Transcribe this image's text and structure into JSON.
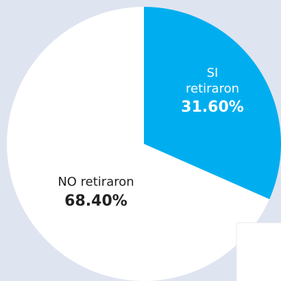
{
  "chart_data": {
    "type": "pie",
    "categories": [
      "SI retiraron",
      "NO retiraron"
    ],
    "values": [
      31.6,
      68.4
    ],
    "value_labels": [
      "31.60%",
      "68.40%"
    ],
    "colors": [
      "#00aeef",
      "#ffffff"
    ],
    "label_colors": [
      "#ffffff",
      "#222222"
    ]
  }
}
